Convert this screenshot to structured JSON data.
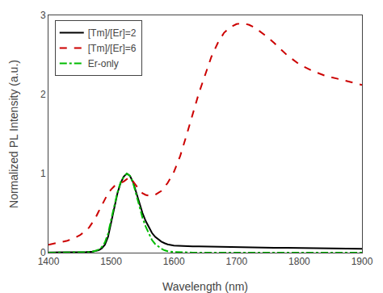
{
  "chart_data": {
    "type": "line",
    "title": "",
    "xlabel": "Wavelength (nm)",
    "ylabel": "Normalized PL Intensity (a.u.)",
    "xlim": [
      1400,
      1900
    ],
    "ylim": [
      0,
      3
    ],
    "xticks": [
      1400,
      1500,
      1600,
      1700,
      1800,
      1900
    ],
    "yticks": [
      0,
      1,
      2,
      3
    ],
    "grid": false,
    "legend": "upper left",
    "series": [
      {
        "name": "[Tm]/[Er]=2",
        "color": "#000000",
        "line_style": "solid",
        "x": [
          1400,
          1430,
          1450,
          1460,
          1470,
          1475,
          1480,
          1485,
          1490,
          1495,
          1500,
          1505,
          1510,
          1515,
          1520,
          1525,
          1530,
          1535,
          1540,
          1545,
          1550,
          1555,
          1560,
          1565,
          1570,
          1575,
          1580,
          1585,
          1590,
          1600,
          1610,
          1620,
          1630,
          1640,
          1650,
          1660,
          1670,
          1680,
          1700,
          1720,
          1740,
          1760,
          1780,
          1800,
          1820,
          1840,
          1860,
          1880,
          1900
        ],
        "values": [
          0.003,
          0.003,
          0.005,
          0.007,
          0.013,
          0.02,
          0.03,
          0.055,
          0.1,
          0.2,
          0.38,
          0.58,
          0.75,
          0.88,
          0.96,
          1.0,
          0.97,
          0.89,
          0.76,
          0.62,
          0.5,
          0.4,
          0.32,
          0.25,
          0.2,
          0.17,
          0.14,
          0.12,
          0.105,
          0.09,
          0.085,
          0.082,
          0.08,
          0.078,
          0.076,
          0.074,
          0.072,
          0.07,
          0.068,
          0.066,
          0.064,
          0.062,
          0.06,
          0.058,
          0.056,
          0.054,
          0.052,
          0.05,
          0.048
        ]
      },
      {
        "name": "[Tm]/[Er]=6",
        "color": "#cc0000",
        "line_style": "dashed",
        "x": [
          1400,
          1420,
          1430,
          1440,
          1450,
          1460,
          1465,
          1470,
          1475,
          1480,
          1485,
          1490,
          1495,
          1500,
          1505,
          1510,
          1515,
          1520,
          1525,
          1530,
          1535,
          1540,
          1545,
          1550,
          1555,
          1560,
          1570,
          1580,
          1590,
          1600,
          1610,
          1620,
          1630,
          1640,
          1650,
          1660,
          1670,
          1680,
          1690,
          1700,
          1710,
          1720,
          1730,
          1740,
          1750,
          1760,
          1770,
          1780,
          1790,
          1800,
          1820,
          1840,
          1860,
          1880,
          1900
        ],
        "values": [
          0.1,
          0.13,
          0.15,
          0.18,
          0.22,
          0.28,
          0.32,
          0.38,
          0.44,
          0.52,
          0.6,
          0.68,
          0.75,
          0.8,
          0.84,
          0.86,
          0.88,
          0.9,
          0.93,
          0.95,
          0.9,
          0.84,
          0.79,
          0.75,
          0.73,
          0.72,
          0.73,
          0.78,
          0.88,
          1.02,
          1.22,
          1.48,
          1.76,
          2.02,
          2.25,
          2.48,
          2.65,
          2.78,
          2.85,
          2.89,
          2.9,
          2.88,
          2.84,
          2.78,
          2.72,
          2.65,
          2.57,
          2.5,
          2.44,
          2.38,
          2.3,
          2.24,
          2.2,
          2.16,
          2.12
        ]
      },
      {
        "name": "Er-only",
        "color": "#00bb00",
        "line_style": "dashdot",
        "x": [
          1400,
          1430,
          1455,
          1465,
          1470,
          1475,
          1480,
          1485,
          1490,
          1495,
          1500,
          1505,
          1510,
          1515,
          1520,
          1525,
          1530,
          1535,
          1540,
          1545,
          1550,
          1555,
          1560,
          1565,
          1570,
          1575,
          1580,
          1585,
          1590,
          1600,
          1610,
          1620,
          1630,
          1640,
          1650,
          1660,
          1670,
          1680,
          1700,
          1720,
          1740,
          1760,
          1780,
          1800,
          1850,
          1900
        ],
        "values": [
          0.0,
          0.0,
          0.003,
          0.007,
          0.013,
          0.022,
          0.04,
          0.07,
          0.13,
          0.24,
          0.42,
          0.6,
          0.76,
          0.89,
          0.96,
          1.0,
          0.97,
          0.88,
          0.73,
          0.58,
          0.44,
          0.33,
          0.24,
          0.16,
          0.11,
          0.075,
          0.05,
          0.03,
          0.018,
          0.008,
          0.004,
          0.002,
          0.001,
          0.001,
          0.0,
          0.0,
          0.0,
          0.0,
          0.0,
          0.0,
          0.0,
          0.0,
          0.0,
          0.0,
          0.0,
          0.0
        ]
      }
    ]
  }
}
